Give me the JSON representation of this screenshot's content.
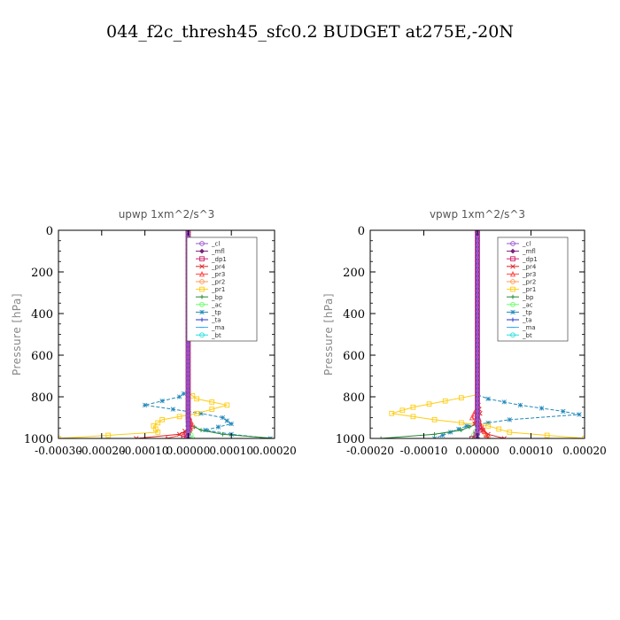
{
  "page": {
    "title": "044_f2c_thresh45_sfc0.2  BUDGET at275E,-20N"
  },
  "chart_data": [
    {
      "type": "line",
      "title": "upwp   1xm^2/s^3",
      "ylabel": "Pressure [hPa]",
      "xlim": [
        -0.0003,
        0.0002
      ],
      "ylim": [
        1000,
        0
      ],
      "xticks": [
        -0.0003,
        -0.0002,
        -0.0001,
        0.0,
        0.0001,
        0.0002
      ],
      "xtick_labels": [
        "-0.00030",
        "-0.00020",
        "-0.00010",
        "0.00000",
        "0.00010",
        "0.00020"
      ],
      "yticks": [
        0,
        200,
        400,
        600,
        800,
        1000
      ],
      "ytick_labels": [
        "0",
        "200",
        "400",
        "600",
        "800",
        "1000"
      ],
      "legend": "top-right",
      "series": [
        {
          "name": "_cl",
          "color": "#9955cc",
          "points": [
            [
              0,
              0
            ],
            [
              0,
              800
            ],
            [
              0,
              1000
            ]
          ]
        },
        {
          "name": "_mfl",
          "color": "#7a1f7a",
          "points": [
            [
              0,
              0
            ],
            [
              0,
              800
            ],
            [
              0,
              1000
            ]
          ]
        },
        {
          "name": "_dp1",
          "color": "#cc2266",
          "points": [
            [
              0,
              0
            ],
            [
              0,
              900
            ],
            [
              2e-06,
              960
            ],
            [
              -1e-05,
              1000
            ]
          ]
        },
        {
          "name": "_pr4",
          "color": "#dd2222",
          "points": [
            [
              0,
              0
            ],
            [
              0,
              880
            ],
            [
              5e-06,
              950
            ],
            [
              -2e-05,
              980
            ],
            [
              -0.00012,
              1000
            ]
          ]
        },
        {
          "name": "_pr3",
          "color": "#ff4444",
          "points": [
            [
              0,
              0
            ],
            [
              0,
              880
            ],
            [
              1e-05,
              940
            ],
            [
              -1e-05,
              980
            ],
            [
              -5e-05,
              1000
            ]
          ]
        },
        {
          "name": "_pr2",
          "color": "#ff9955",
          "points": [
            [
              0,
              0
            ],
            [
              0,
              900
            ],
            [
              5e-06,
              960
            ],
            [
              -1e-05,
              1000
            ]
          ]
        },
        {
          "name": "_pr1",
          "color": "#ffcc11",
          "points": [
            [
              0,
              0
            ],
            [
              0,
              780
            ],
            [
              2e-05,
              810
            ],
            [
              9e-05,
              840
            ],
            [
              2e-05,
              880
            ],
            [
              -6e-05,
              910
            ],
            [
              -8e-05,
              940
            ],
            [
              -7e-05,
              970
            ],
            [
              -0.0003,
              1000
            ]
          ]
        },
        {
          "name": "_bp",
          "color": "#228833",
          "points": [
            [
              0,
              0
            ],
            [
              0,
              930
            ],
            [
              3e-05,
              960
            ],
            [
              8e-05,
              980
            ],
            [
              0.0002,
              1000
            ]
          ]
        },
        {
          "name": "_ac",
          "color": "#66ff66",
          "points": [
            [
              0,
              0
            ],
            [
              0,
              950
            ],
            [
              1e-05,
              1000
            ]
          ]
        },
        {
          "name": "_tp",
          "color": "#2288bb",
          "points": [
            [
              0,
              0
            ],
            [
              0,
              770
            ],
            [
              -2e-05,
              800
            ],
            [
              -0.0001,
              840
            ],
            [
              3e-05,
              880
            ],
            [
              8e-05,
              900
            ],
            [
              0.0001,
              930
            ],
            [
              4e-05,
              960
            ],
            [
              0.0001,
              980
            ],
            [
              0.00019,
              1000
            ]
          ]
        },
        {
          "name": "_ta",
          "color": "#2233cc",
          "points": [
            [
              0,
              0
            ],
            [
              0,
              1000
            ]
          ]
        },
        {
          "name": "_ma",
          "color": "#33aaee",
          "points": [
            [
              0,
              0
            ],
            [
              0,
              1000
            ]
          ]
        },
        {
          "name": "_bt",
          "color": "#22dddd",
          "points": [
            [
              0,
              0
            ],
            [
              0,
              1000
            ]
          ]
        }
      ]
    },
    {
      "type": "line",
      "title": "vpwp   1xm^2/s^3",
      "ylabel": "Pressure [hPa]",
      "xlim": [
        -0.0002,
        0.0002
      ],
      "ylim": [
        1000,
        0
      ],
      "xticks": [
        -0.0002,
        -0.0001,
        0.0,
        0.0001,
        0.0002
      ],
      "xtick_labels": [
        "-0.00020",
        "-0.00010",
        "0.00000",
        "0.00010",
        "0.00020"
      ],
      "yticks": [
        0,
        200,
        400,
        600,
        800,
        1000
      ],
      "ytick_labels": [
        "0",
        "200",
        "400",
        "600",
        "800",
        "1000"
      ],
      "legend": "top-right",
      "series": [
        {
          "name": "_cl",
          "color": "#9955cc",
          "points": [
            [
              0,
              0
            ],
            [
              0,
              800
            ],
            [
              0,
              1000
            ]
          ]
        },
        {
          "name": "_mfl",
          "color": "#7a1f7a",
          "points": [
            [
              0,
              0
            ],
            [
              0,
              800
            ],
            [
              0,
              1000
            ]
          ]
        },
        {
          "name": "_dp1",
          "color": "#cc2266",
          "points": [
            [
              0,
              0
            ],
            [
              0,
              900
            ],
            [
              5e-06,
              960
            ],
            [
              -1e-05,
              1000
            ]
          ]
        },
        {
          "name": "_pr4",
          "color": "#dd2222",
          "points": [
            [
              0,
              0
            ],
            [
              0,
              820
            ],
            [
              5e-06,
              880
            ],
            [
              -5e-06,
              930
            ],
            [
              1e-05,
              960
            ],
            [
              2e-05,
              980
            ],
            [
              5e-05,
              1000
            ]
          ]
        },
        {
          "name": "_pr3",
          "color": "#ff4444",
          "points": [
            [
              0,
              0
            ],
            [
              0,
              850
            ],
            [
              -1e-05,
              900
            ],
            [
              1e-05,
              950
            ],
            [
              2e-05,
              1000
            ]
          ]
        },
        {
          "name": "_pr2",
          "color": "#ff9955",
          "points": [
            [
              0,
              0
            ],
            [
              0,
              900
            ],
            [
              1e-05,
              960
            ],
            [
              2e-05,
              1000
            ]
          ]
        },
        {
          "name": "_pr1",
          "color": "#ffcc11",
          "points": [
            [
              0,
              0
            ],
            [
              0,
              790
            ],
            [
              -6e-05,
              820
            ],
            [
              -0.00012,
              850
            ],
            [
              -0.00016,
              880
            ],
            [
              -8e-05,
              910
            ],
            [
              2e-05,
              940
            ],
            [
              6e-05,
              970
            ],
            [
              0.0002,
              1000
            ]
          ]
        },
        {
          "name": "_bp",
          "color": "#228833",
          "points": [
            [
              0,
              0
            ],
            [
              0,
              930
            ],
            [
              -3e-05,
              960
            ],
            [
              -8e-05,
              980
            ],
            [
              -0.00018,
              1000
            ]
          ]
        },
        {
          "name": "_ac",
          "color": "#66ff66",
          "points": [
            [
              0,
              0
            ],
            [
              0,
              950
            ],
            [
              -1e-05,
              1000
            ]
          ]
        },
        {
          "name": "_tp",
          "color": "#2288bb",
          "points": [
            [
              0,
              0
            ],
            [
              0,
              790
            ],
            [
              2e-05,
              810
            ],
            [
              8e-05,
              840
            ],
            [
              0.00016,
              870
            ],
            [
              0.00019,
              885
            ],
            [
              6e-05,
              910
            ],
            [
              -2e-05,
              940
            ],
            [
              -5e-05,
              970
            ],
            [
              -8e-05,
              1000
            ]
          ]
        },
        {
          "name": "_ta",
          "color": "#2233cc",
          "points": [
            [
              0,
              0
            ],
            [
              0,
              1000
            ]
          ]
        },
        {
          "name": "_ma",
          "color": "#33aaee",
          "points": [
            [
              0,
              0
            ],
            [
              0,
              1000
            ]
          ]
        },
        {
          "name": "_bt",
          "color": "#22dddd",
          "points": [
            [
              0,
              0
            ],
            [
              0,
              1000
            ]
          ]
        }
      ]
    }
  ]
}
